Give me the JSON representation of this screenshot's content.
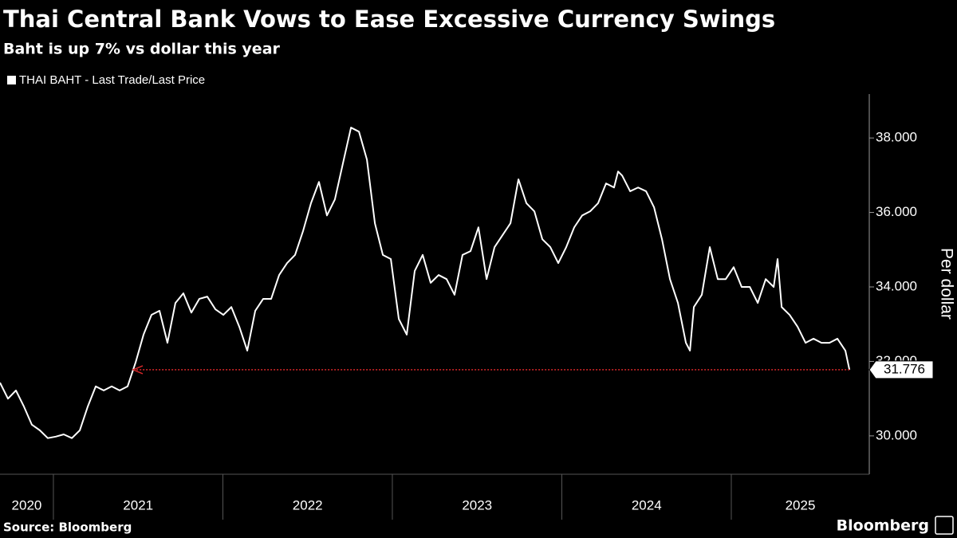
{
  "chart_data": {
    "type": "line",
    "title": "Thai Central Bank Vows to Ease Excessive Currency Swings",
    "subtitle": "Baht is up 7% vs dollar this year",
    "y_label": "Per dollar",
    "source": "Source: Bloomberg",
    "logo": "Bloomberg",
    "arrow_color": "#d62728",
    "xlim": [
      2020.685,
      2025.814
    ],
    "xticks": [
      2020,
      2021,
      2022,
      2023,
      2024,
      2025
    ],
    "ylim": [
      28.97,
      39.18
    ],
    "yticks": [
      {
        "value": 30,
        "label": "30.000"
      },
      {
        "value": 32,
        "label": "32.000"
      },
      {
        "value": 34,
        "label": "34.000"
      },
      {
        "value": 36,
        "label": "36.000"
      },
      {
        "value": 38,
        "label": "38.000"
      }
    ],
    "x": [
      2020.685,
      2020.732,
      2020.779,
      2020.826,
      2020.873,
      2020.92,
      2020.967,
      2021.014,
      2021.061,
      2021.109,
      2021.156,
      2021.203,
      2021.25,
      2021.297,
      2021.344,
      2021.391,
      2021.438,
      2021.485,
      2021.532,
      2021.579,
      2021.626,
      2021.673,
      2021.72,
      2021.767,
      2021.814,
      2021.861,
      2021.908,
      2021.956,
      2022.003,
      2022.05,
      2022.097,
      2022.144,
      2022.191,
      2022.238,
      2022.285,
      2022.332,
      2022.379,
      2022.426,
      2022.473,
      2022.52,
      2022.567,
      2022.614,
      2022.661,
      2022.708,
      2022.756,
      2022.803,
      2022.85,
      2022.897,
      2022.944,
      2022.991,
      2023.038,
      2023.085,
      2023.132,
      2023.179,
      2023.226,
      2023.273,
      2023.32,
      2023.367,
      2023.414,
      2023.461,
      2023.508,
      2023.556,
      2023.603,
      2023.65,
      2023.697,
      2023.744,
      2023.791,
      2023.838,
      2023.885,
      2023.932,
      2023.979,
      2024.026,
      2024.073,
      2024.12,
      2024.167,
      2024.214,
      2024.261,
      2024.308,
      2024.332,
      2024.356,
      2024.403,
      2024.45,
      2024.497,
      2024.544,
      2024.591,
      2024.638,
      2024.685,
      2024.732,
      2024.756,
      2024.779,
      2024.826,
      2024.873,
      2024.92,
      2024.967,
      2025.014,
      2025.061,
      2025.109,
      2025.156,
      2025.203,
      2025.25,
      2025.273,
      2025.297,
      2025.344,
      2025.391,
      2025.438,
      2025.485,
      2025.532,
      2025.579,
      2025.626,
      2025.673,
      2025.697
    ],
    "series": [
      {
        "name": "THAI BAHT - Last Trade/Last Price",
        "color": "#ffffff",
        "values": [
          31.43,
          31.0,
          31.22,
          30.79,
          30.3,
          30.15,
          29.94,
          29.98,
          30.04,
          29.94,
          30.15,
          30.79,
          31.33,
          31.22,
          31.33,
          31.22,
          31.33,
          31.97,
          32.72,
          33.25,
          33.36,
          32.5,
          33.57,
          33.83,
          33.31,
          33.68,
          33.74,
          33.4,
          33.25,
          33.46,
          32.93,
          32.29,
          33.36,
          33.68,
          33.68,
          34.32,
          34.64,
          34.86,
          35.5,
          36.25,
          36.82,
          35.92,
          36.35,
          37.31,
          38.28,
          38.17,
          37.42,
          35.71,
          34.86,
          34.75,
          33.14,
          32.72,
          34.43,
          34.86,
          34.11,
          34.32,
          34.21,
          33.79,
          34.86,
          34.96,
          35.6,
          34.21,
          35.07,
          35.39,
          35.71,
          36.89,
          36.25,
          36.03,
          35.28,
          35.07,
          34.64,
          35.07,
          35.6,
          35.92,
          36.03,
          36.25,
          36.78,
          36.67,
          37.1,
          36.99,
          36.57,
          36.67,
          36.57,
          36.14,
          35.28,
          34.21,
          33.57,
          32.5,
          32.29,
          33.46,
          33.79,
          35.07,
          34.21,
          34.21,
          34.53,
          34.0,
          34.0,
          33.57,
          34.21,
          34.0,
          34.75,
          33.46,
          33.25,
          32.93,
          32.5,
          32.61,
          32.5,
          32.5,
          32.61,
          32.29,
          31.776
        ]
      }
    ]
  }
}
